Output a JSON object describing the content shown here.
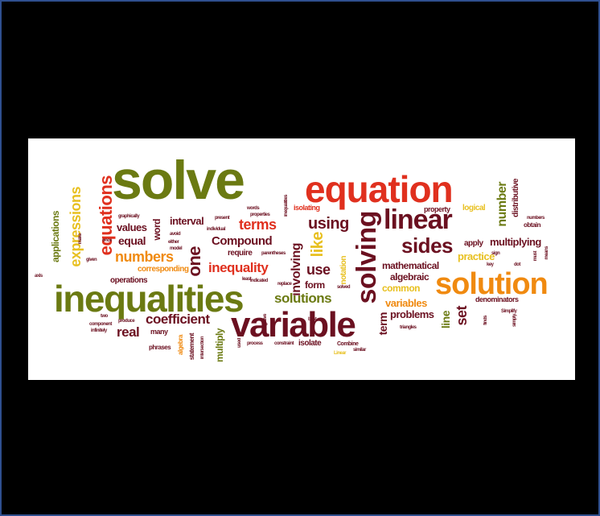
{
  "colors": {
    "background": "#000000",
    "panel": "#ffffff",
    "olive": "#6b7a12",
    "red": "#e0301e",
    "maroon": "#6b1020",
    "orange": "#f08a10",
    "yellow": "#e8c020",
    "dark": "#3a2a10"
  },
  "words": {
    "solve": "solve",
    "equation": "equation",
    "inequalities": "inequalities",
    "variable": "variable",
    "solution": "solution",
    "linear": "linear",
    "solving": "solving",
    "sides": "sides",
    "equations": "equations",
    "expressions": "expressions",
    "applications": "applications",
    "numbers": "numbers",
    "values": "values",
    "equal": "equal",
    "one": "one",
    "interval": "interval",
    "terms": "terms",
    "using": "using",
    "compound": "Compound",
    "like": "like",
    "inequality": "inequality",
    "involving": "involving",
    "use": "use",
    "form": "form",
    "solutions": "solutions",
    "coefficient": "coefficient",
    "real": "real",
    "term": "term",
    "problems": "problems",
    "set": "set",
    "line": "line",
    "common": "common",
    "variables": "variables",
    "mathematical": "mathematical",
    "algebraic": "algebraic",
    "apply": "apply",
    "practice": "practice",
    "multiplying": "multiplying",
    "number": "number",
    "property": "property",
    "logical": "logical",
    "isolating": "isolating",
    "word": "word",
    "corresponding": "corresponding",
    "operations": "operations",
    "isolate": "isolate",
    "multiply": "multiply",
    "statement": "statement",
    "many": "many",
    "denominators": "denominators",
    "notation": "notation",
    "distributive": "distributive",
    "obtain": "obtain",
    "inequalities_small": "inequalities",
    "graphically": "graphically",
    "either": "either",
    "require": "require",
    "parentheses": "parentheses",
    "properties": "properties",
    "replace": "replace",
    "indicated": "indicated",
    "solved": "solved",
    "best": "best",
    "combine": "Combine",
    "similar": "similar",
    "linear_small": "Linear",
    "process": "process",
    "constraint": "constraint",
    "triangles": "triangles",
    "simplify": "Simplify",
    "finds": "finds",
    "phrases": "phrases",
    "algebra": "algebra",
    "infinitely": "infinitely",
    "product": "produce",
    "component": "component",
    "two": "two",
    "sign": "sign",
    "key": "key",
    "given": "given",
    "axis": "axis",
    "individual": "individual",
    "avoid": "avoid",
    "model": "model",
    "words": "words",
    "present": "present",
    "least": "least",
    "must": "must",
    "negative": "negative",
    "means": "means",
    "intersection": "intersection",
    "numbers_small": "numbers",
    "once": "once",
    "make": "make",
    "dot": "dot",
    "used": "used",
    "similarly": "simply"
  }
}
